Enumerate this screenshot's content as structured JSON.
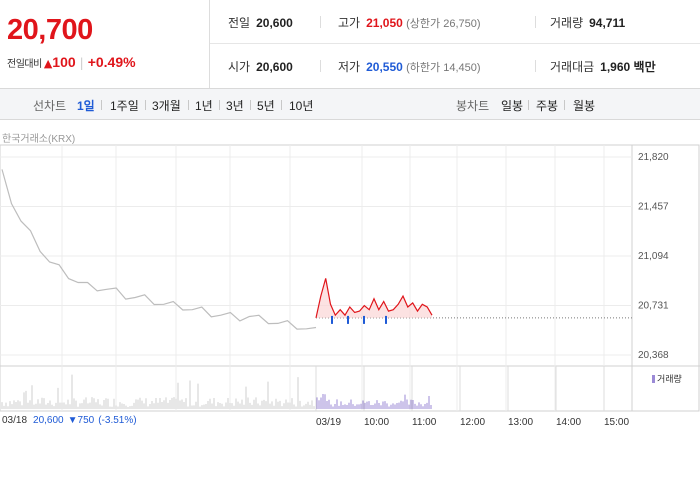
{
  "quote": {
    "current_price": "20,700",
    "change_label": "전일대비",
    "change_arrow": "▲",
    "change_value": "100",
    "change_rate": "+0.49%"
  },
  "stats": {
    "prev_close": {
      "label": "전일",
      "value": "20,600"
    },
    "high": {
      "label": "고가",
      "value": "21,050",
      "note": "(상한가 26,750)"
    },
    "volume": {
      "label": "거래량",
      "value": "94,711"
    },
    "open": {
      "label": "시가",
      "value": "20,600"
    },
    "low": {
      "label": "저가",
      "value": "20,550",
      "note": "(하한가 14,450)"
    },
    "trade_value": {
      "label": "거래대금",
      "value": "1,960 백만"
    }
  },
  "tabs": {
    "line_label": "선차트",
    "line_periods": [
      "1일",
      "1주일",
      "3개월",
      "1년",
      "3년",
      "5년",
      "10년"
    ],
    "active_period": "1일",
    "candle_label": "봉차트",
    "candle_periods": [
      "일봉",
      "주봉",
      "월봉"
    ]
  },
  "chart": {
    "exchange": "한국거래소(KRX)",
    "y_ticks": [
      "21,820",
      "21,457",
      "21,094",
      "20,731",
      "20,368"
    ],
    "x_ticks": [
      "03/19",
      "10:00",
      "11:00",
      "12:00",
      "13:00",
      "14:00",
      "15:00"
    ],
    "volume_legend": "거래량",
    "colors": {
      "up": "#e0151b",
      "down": "#1f5bd6",
      "prev_day": "#bdbdbd",
      "volume": "#9b8ad6"
    }
  },
  "prev_day_info": {
    "date": "03/18",
    "price": "20,600",
    "arrow": "▼",
    "change": "750",
    "rate": "(-3.51%)"
  },
  "chart_data": {
    "type": "line",
    "ylim": [
      20368,
      21820
    ],
    "reference_line": 20640,
    "series": [
      {
        "values": [
          21700,
          21500,
          21350,
          21250,
          21150,
          21050,
          21000,
          20950,
          20900,
          20870,
          20860,
          20850,
          20830,
          20800,
          20790,
          20780,
          20760,
          20740,
          20730,
          20720,
          20700,
          20690,
          20670,
          20660,
          20650,
          20640,
          20650,
          20630,
          20620,
          20600,
          20590,
          20580,
          20560,
          20540
        ]
      },
      {
        "values": [
          20640,
          20800,
          20930,
          20740,
          20660,
          20700,
          20660,
          20720,
          20680,
          20690,
          20730,
          20700,
          20780,
          20700,
          20760,
          20690,
          20700,
          20740,
          20800,
          20720,
          20750,
          20690,
          20740,
          20720,
          20660
        ]
      }
    ]
  }
}
